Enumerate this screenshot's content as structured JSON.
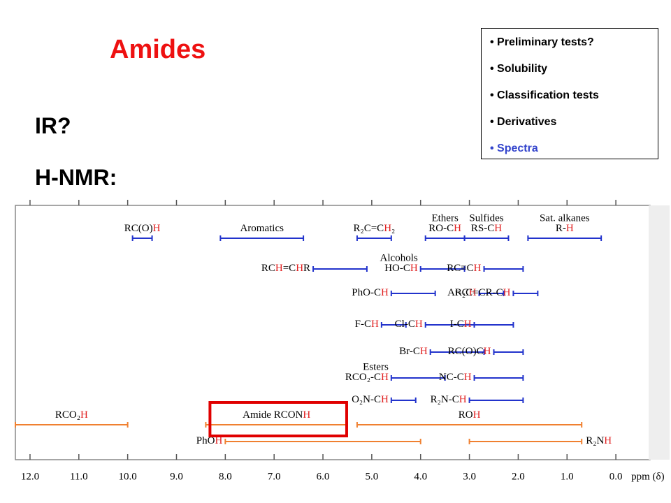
{
  "slide": {
    "title": "Amides",
    "ir": "IR?",
    "nmr": "H-NMR:"
  },
  "menu": {
    "items": [
      "Preliminary tests?",
      "Solubility",
      "Classification tests",
      "Derivatives",
      "Spectra"
    ],
    "active": 4
  },
  "chart_data": {
    "type": "range",
    "xlabel": "ppm (δ)",
    "xlim": [
      12.3,
      -0.7
    ],
    "xticks": [
      {
        "value": 12,
        "label": "12.0"
      },
      {
        "value": 11,
        "label": "11.0"
      },
      {
        "value": 10,
        "label": "10.0"
      },
      {
        "value": 9,
        "label": "9.0"
      },
      {
        "value": 8,
        "label": "8.0"
      },
      {
        "value": 7,
        "label": "7.0"
      },
      {
        "value": 6,
        "label": "6.0"
      },
      {
        "value": 5,
        "label": "5.0"
      },
      {
        "value": 4,
        "label": "4.0"
      },
      {
        "value": 3,
        "label": "3.0"
      },
      {
        "value": 2,
        "label": "2.0"
      },
      {
        "value": 1,
        "label": "1.0"
      },
      {
        "value": 0,
        "label": "0.0"
      }
    ],
    "colors": {
      "blue": "#2233cc",
      "orange": "#f08030",
      "highlight": "#e02020",
      "box": "#e00000"
    },
    "highlight": {
      "range": [
        8.4,
        5.6
      ]
    },
    "rows": [
      {
        "items": [
          {
            "label": [
              "RC(O)",
              "H"
            ],
            "color": "blue",
            "range": [
              9.9,
              9.5
            ]
          },
          {
            "label": [
              "Aromatics"
            ],
            "color": "blue",
            "range": [
              8.1,
              6.4
            ]
          },
          {
            "label": [
              "R₂C=C",
              "H",
              "₂"
            ],
            "color": "blue",
            "range": [
              5.3,
              4.6
            ]
          },
          {
            "group": "Ethers",
            "label": [
              "RO-C",
              "H"
            ],
            "color": "blue",
            "range": [
              3.9,
              3.1
            ]
          },
          {
            "group": "Sulfides",
            "label": [
              "RS-C",
              "H"
            ],
            "color": "blue",
            "range": [
              3.1,
              2.2
            ]
          },
          {
            "group": "Sat. alkanes",
            "label": [
              "R-",
              "H"
            ],
            "color": "blue",
            "range": [
              1.8,
              0.3
            ]
          }
        ]
      },
      {
        "items": [
          {
            "label": [
              "RC",
              "H",
              "=C",
              "H",
              "R"
            ],
            "color": "blue",
            "range": [
              6.2,
              5.1
            ]
          },
          {
            "group": "Alcohols",
            "label": [
              "HO-C",
              "H"
            ],
            "color": "blue",
            "range": [
              4.0,
              3.1
            ]
          },
          {
            "label": [
              "RC≡C",
              "H"
            ],
            "color": "blue",
            "range": [
              2.7,
              1.9
            ]
          }
        ]
      },
      {
        "items": [
          {
            "label": [
              "PhO-C",
              "H"
            ],
            "color": "blue",
            "range": [
              4.6,
              3.7
            ]
          },
          {
            "label": [
              "Ar-C",
              "H"
            ],
            "color": "blue",
            "range": [
              2.8,
              2.3
            ]
          },
          {
            "label": [
              "R₂C=CR-C",
              "H"
            ],
            "color": "blue",
            "range": [
              2.1,
              1.6
            ]
          }
        ]
      },
      {
        "items": [
          {
            "label": [
              "F-C",
              "H"
            ],
            "color": "blue",
            "range": [
              4.8,
              4.3
            ]
          },
          {
            "label": [
              "Cl-C",
              "H"
            ],
            "color": "blue",
            "range": [
              3.9,
              2.9
            ]
          },
          {
            "label": [
              "I-C",
              "H"
            ],
            "color": "blue",
            "range": [
              2.9,
              2.1
            ]
          }
        ]
      },
      {
        "items": [
          {
            "label": [
              "Br-C",
              "H"
            ],
            "color": "blue",
            "range": [
              3.8,
              2.7
            ]
          },
          {
            "label": [
              "RC(O)C",
              "H"
            ],
            "color": "blue",
            "range": [
              2.5,
              1.9
            ]
          }
        ]
      },
      {
        "items": [
          {
            "group": "Esters",
            "label": [
              "RCO₂-C",
              "H"
            ],
            "color": "blue",
            "range": [
              4.6,
              3.5
            ]
          },
          {
            "label": [
              "NC-C",
              "H"
            ],
            "color": "blue",
            "range": [
              2.9,
              1.9
            ]
          }
        ]
      },
      {
        "items": [
          {
            "label": [
              "O₂N-C",
              "H"
            ],
            "color": "blue",
            "range": [
              4.6,
              4.1
            ]
          },
          {
            "label": [
              "R₂N-C",
              "H"
            ],
            "color": "blue",
            "range": [
              3.0,
              1.9
            ]
          }
        ]
      },
      {
        "items": [
          {
            "label": [
              "RCO₂",
              "H"
            ],
            "color": "orange",
            "range": [
              12.3,
              10.0
            ]
          },
          {
            "label": [
              "Amide RCON",
              "H"
            ],
            "color": "orange",
            "range": [
              8.4,
              5.5
            ]
          },
          {
            "label": [
              "RO",
              "H"
            ],
            "color": "orange",
            "range": [
              5.3,
              0.7
            ]
          }
        ]
      },
      {
        "items": [
          {
            "label": [
              "PhO",
              "H"
            ],
            "color": "orange",
            "range": [
              8.0,
              4.0
            ]
          },
          {
            "label": [
              "R₂N",
              "H"
            ],
            "color": "orange",
            "range": [
              3.0,
              0.7
            ]
          }
        ]
      }
    ]
  }
}
